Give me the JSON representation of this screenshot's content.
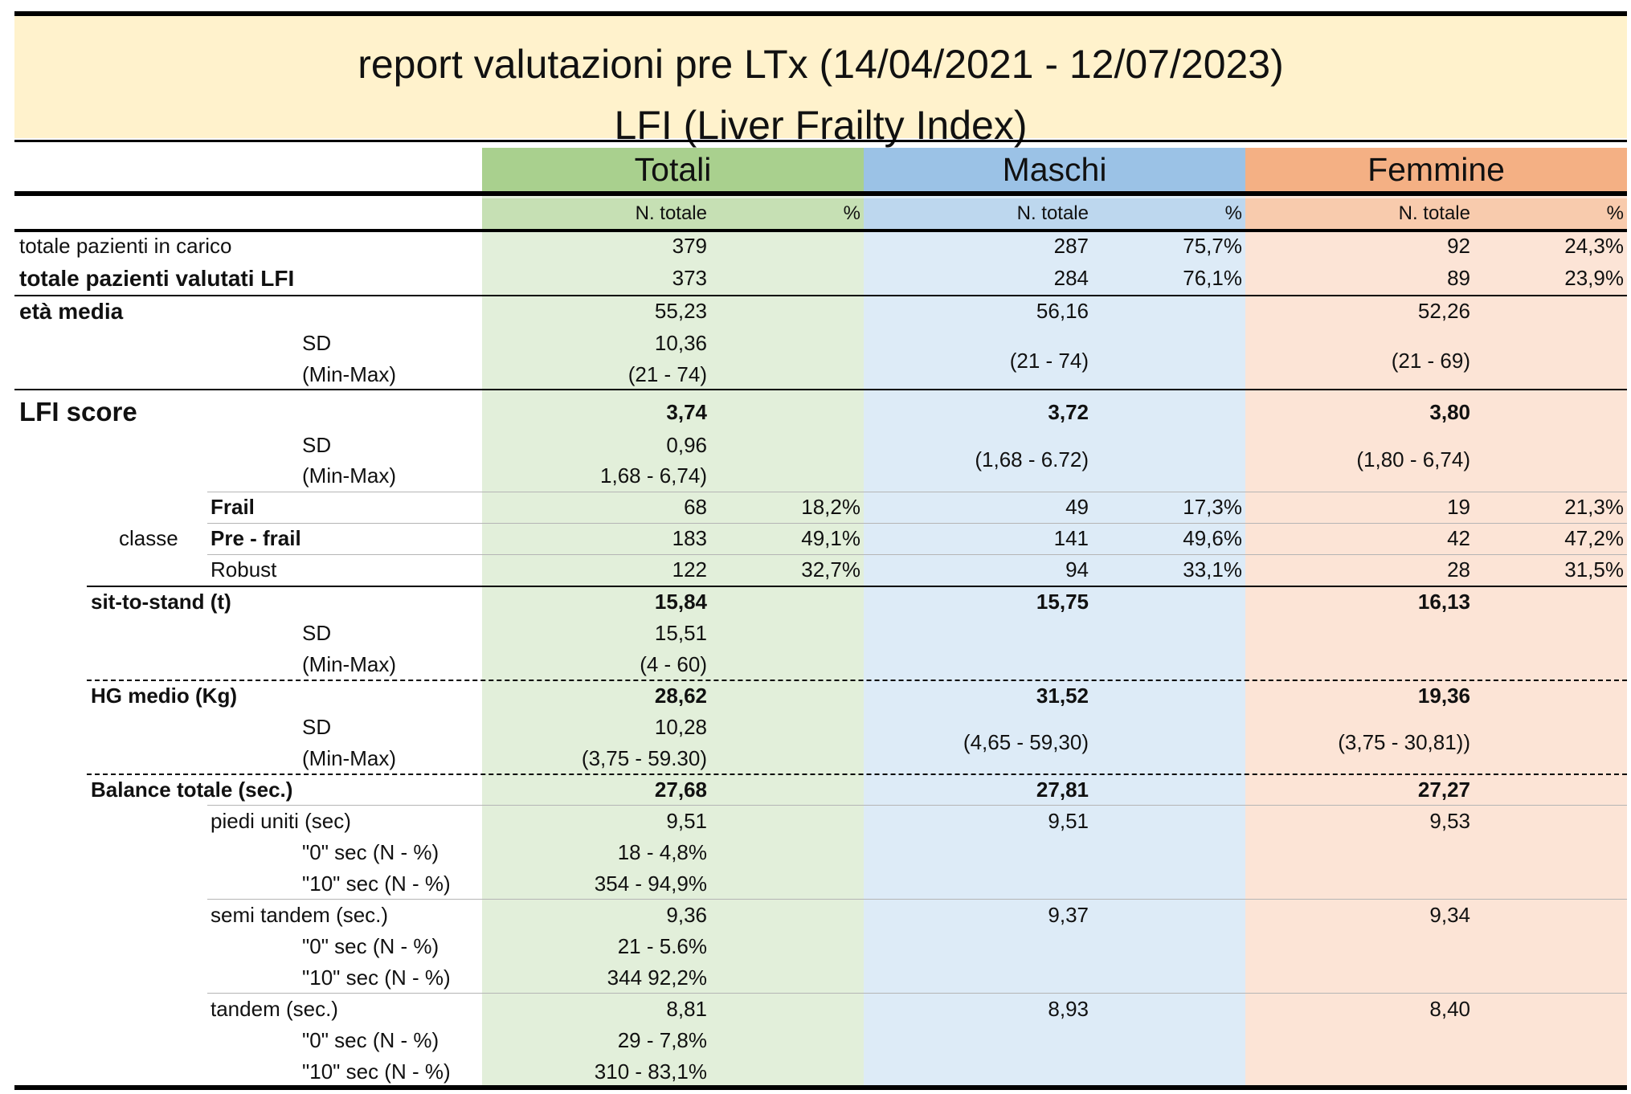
{
  "title": {
    "line1": "report valutazioni pre LTx  (14/04/2021 - 12/07/2023)",
    "line2": "LFI (Liver Frailty Index)"
  },
  "colors": {
    "title_band": "#fff2cc",
    "totali_header": "#a9d08e",
    "totali_body": "#e2efda",
    "maschi_header": "#9bc2e6",
    "maschi_body": "#ddebf7",
    "femmine_header": "#f4b084",
    "femmine_body": "#fce4d6"
  },
  "groups": {
    "totali": "Totali",
    "maschi": "Maschi",
    "femmine": "Femmine"
  },
  "subheaders": {
    "n_totale": "N. totale",
    "pct": "%"
  },
  "rows": {
    "pazienti_carico": {
      "label": "totale pazienti in carico",
      "tot_n": "379",
      "tot_p": "",
      "mas_n": "287",
      "mas_p": "75,7%",
      "fem_n": "92",
      "fem_p": "24,3%"
    },
    "pazienti_lfi": {
      "label": "totale pazienti valutati LFI",
      "tot_n": "373",
      "tot_p": "",
      "mas_n": "284",
      "mas_p": "76,1%",
      "fem_n": "89",
      "fem_p": "23,9%"
    },
    "eta_media": {
      "label": "età media",
      "tot": "55,23",
      "mas": "56,16",
      "fem": "52,26"
    },
    "eta_sd": {
      "label": "SD",
      "tot": "10,36"
    },
    "eta_minmax": {
      "label": "(Min-Max)",
      "tot": "(21 - 74)",
      "mas": "(21 - 74)",
      "fem": "(21 - 69)"
    },
    "lfi_score": {
      "label": "LFI score",
      "tot": "3,74",
      "mas": "3,72",
      "fem": "3,80"
    },
    "lfi_sd": {
      "label": "SD",
      "tot": "0,96"
    },
    "lfi_minmax": {
      "label": "(Min-Max)",
      "tot": "1,68 - 6,74)",
      "mas": "(1,68 - 6.72)",
      "fem": "(1,80 - 6,74)"
    },
    "classe": {
      "label": "classe"
    },
    "frail": {
      "label": "Frail",
      "tot_n": "68",
      "tot_p": "18,2%",
      "mas_n": "49",
      "mas_p": "17,3%",
      "fem_n": "19",
      "fem_p": "21,3%"
    },
    "prefrail": {
      "label": "Pre - frail",
      "tot_n": "183",
      "tot_p": "49,1%",
      "mas_n": "141",
      "mas_p": "49,6%",
      "fem_n": "42",
      "fem_p": "47,2%"
    },
    "robust": {
      "label": "Robust",
      "tot_n": "122",
      "tot_p": "32,7%",
      "mas_n": "94",
      "mas_p": "33,1%",
      "fem_n": "28",
      "fem_p": "31,5%"
    },
    "sit_to_stand": {
      "label": "sit-to-stand (t)",
      "tot": "15,84",
      "mas": "15,75",
      "fem": "16,13"
    },
    "sts_sd": {
      "label": "SD",
      "tot": "15,51"
    },
    "sts_minmax": {
      "label": "(Min-Max)",
      "tot": "(4 - 60)"
    },
    "hg_medio": {
      "label": "HG medio (Kg)",
      "tot": "28,62",
      "mas": "31,52",
      "fem": "19,36"
    },
    "hg_sd": {
      "label": "SD",
      "tot": "10,28"
    },
    "hg_minmax": {
      "label": "(Min-Max)",
      "tot": "(3,75 - 59.30)",
      "mas": "(4,65 - 59,30)",
      "fem": "(3,75 - 30,81))"
    },
    "balance": {
      "label": "Balance totale (sec.)",
      "tot": "27,68",
      "mas": "27,81",
      "fem": "27,27"
    },
    "piedi_uniti": {
      "label": "piedi uniti (sec)",
      "tot": "9,51",
      "mas": "9,51",
      "fem": "9,53"
    },
    "pu_0": {
      "label": "\"0\" sec (N - %)",
      "tot": "18 - 4,8%"
    },
    "pu_10": {
      "label": "\"10\" sec (N - %)",
      "tot": "354 - 94,9%"
    },
    "semi_tandem": {
      "label": "semi tandem (sec.)",
      "tot": "9,36",
      "mas": "9,37",
      "fem": "9,34"
    },
    "st_0": {
      "label": "\"0\" sec (N - %)",
      "tot": "21 - 5.6%"
    },
    "st_10": {
      "label": "\"10\" sec (N - %)",
      "tot": "344  92,2%"
    },
    "tandem": {
      "label": "tandem (sec.)",
      "tot": "8,81",
      "mas": "8,93",
      "fem": "8,40"
    },
    "t_0": {
      "label": "\"0\" sec (N - %)",
      "tot": "29 - 7,8%"
    },
    "t_10": {
      "label": "\"10\" sec (N - %)",
      "tot": "310 - 83,1%"
    }
  }
}
